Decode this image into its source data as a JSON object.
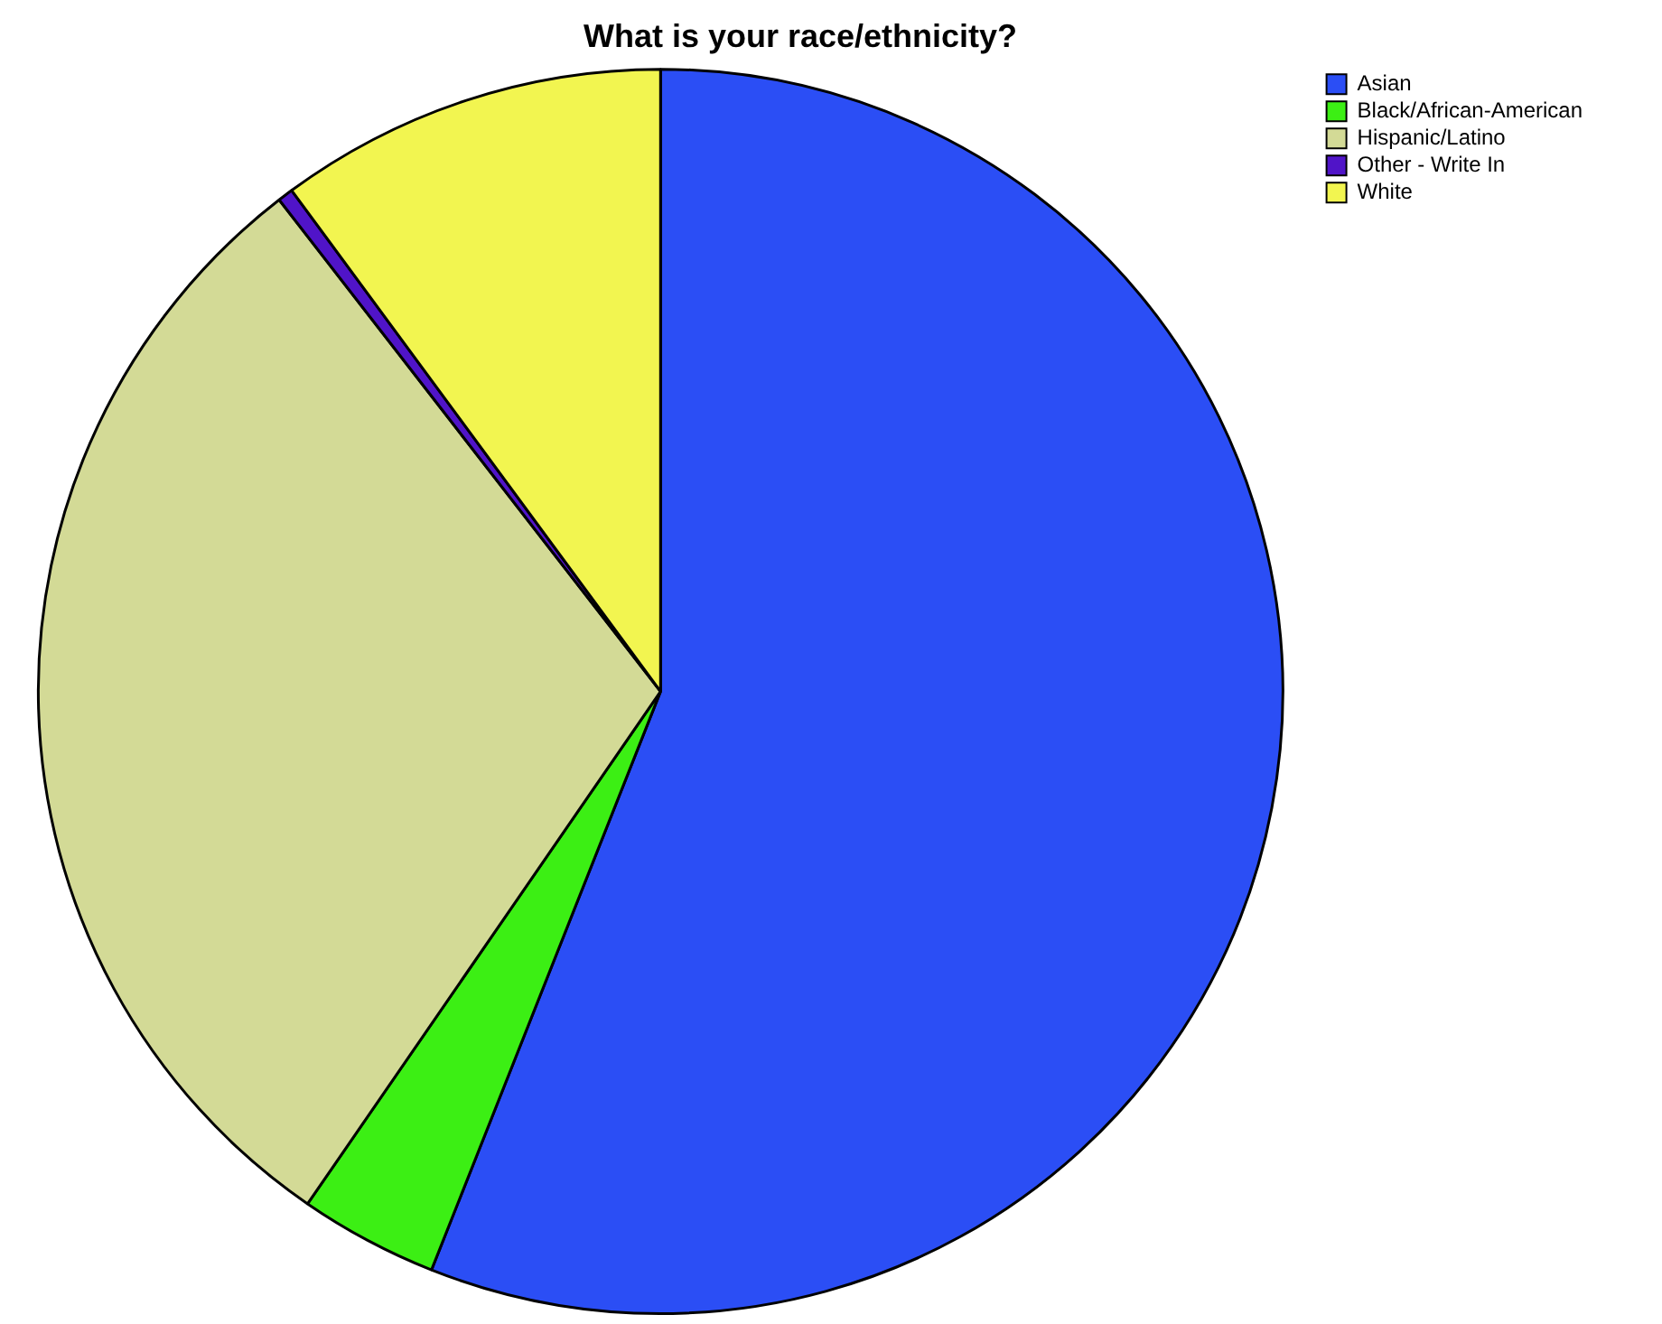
{
  "chart_data": {
    "type": "pie",
    "title": "What is your race/ethnicity?",
    "categories": [
      "Asian",
      "Black/African-American",
      "Hispanic/Latino",
      "Other - Write In",
      "White"
    ],
    "values": [
      56.0,
      3.6,
      29.9,
      0.4,
      10.1
    ],
    "colors": [
      "#2b4ef5",
      "#3cef14",
      "#d3da96",
      "#5014c8",
      "#f2f550"
    ],
    "legend": "top right"
  }
}
